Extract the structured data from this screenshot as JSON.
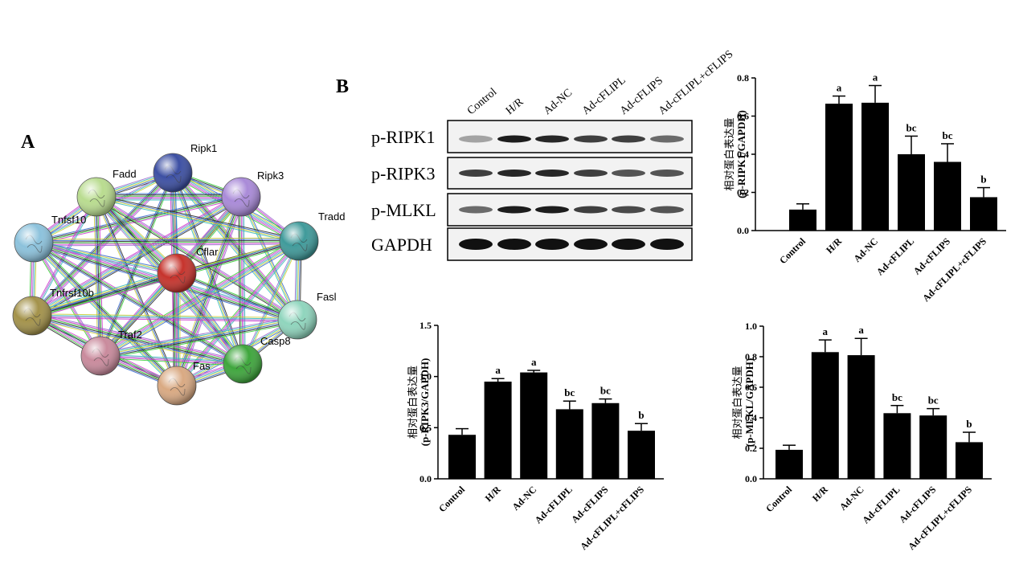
{
  "panel_a": {
    "label": "A",
    "nodes": [
      "Ripk1",
      "Ripk3",
      "Fadd",
      "Tradd",
      "Tnfsf10",
      "Cflar",
      "Tnfrsf10b",
      "Fasl",
      "Traf2",
      "Casp8",
      "Fas"
    ]
  },
  "panel_b": {
    "label": "B",
    "blot": {
      "lanes": [
        "Control",
        "H/R",
        "Ad-NC",
        "Ad-cFLIPL",
        "Ad-cFLIPS",
        "Ad-cFLIPL+cFLIPS"
      ],
      "rows": [
        "p-RIPK1",
        "p-RIPK3",
        "p-MLKL",
        "GAPDH"
      ]
    }
  },
  "chart_data": [
    {
      "type": "bar",
      "ylabel": [
        "相对蛋白表达量",
        "(p-RIPK1/GAPDH)"
      ],
      "categories": [
        "Control",
        "H/R",
        "Ad-NC",
        "Ad-cFLIPL",
        "Ad-cFLIPS",
        "Ad-cFLIPL+cFLIPS"
      ],
      "values": [
        0.11,
        0.665,
        0.67,
        0.4,
        0.36,
        0.175
      ],
      "errors": [
        0.03,
        0.04,
        0.09,
        0.095,
        0.095,
        0.05
      ],
      "letters": [
        null,
        "a",
        "a",
        "bc",
        "bc",
        "b"
      ],
      "color": "#000000",
      "ylim": [
        0,
        0.8
      ],
      "yticks": [
        {
          "value": 0,
          "label": "0.0"
        },
        0.2,
        0.4,
        0.6,
        0.8
      ]
    },
    {
      "type": "bar",
      "ylabel": [
        "相对蛋白表达量",
        "(p-RIPK3/GAPDH)"
      ],
      "categories": [
        "Control",
        "H/R",
        "Ad-NC",
        "Ad-cFLIPL",
        "Ad-cFLIPS",
        "Ad-cFLIPL+cFLIPS"
      ],
      "values": [
        0.43,
        0.95,
        1.04,
        0.68,
        0.74,
        0.47
      ],
      "errors": [
        0.06,
        0.03,
        0.02,
        0.08,
        0.04,
        0.07
      ],
      "letters": [
        null,
        "a",
        "a",
        "bc",
        "bc",
        "b"
      ],
      "color": "#000000",
      "ylim": [
        0,
        1.5
      ],
      "yticks": [
        {
          "value": 0,
          "label": "0.0"
        },
        0.5,
        {
          "value": 1,
          "label": "1.0"
        },
        1.5
      ]
    },
    {
      "type": "bar",
      "ylabel": [
        "相对蛋白表达量",
        "(p-MLKL/GAPDH)"
      ],
      "categories": [
        "Control",
        "H/R",
        "Ad-NC",
        "Ad-cFLIPL",
        "Ad-cFLIPS",
        "Ad-cFLIPL+cFLIPS"
      ],
      "values": [
        0.19,
        0.83,
        0.81,
        0.43,
        0.415,
        0.24
      ],
      "errors": [
        0.03,
        0.08,
        0.11,
        0.05,
        0.045,
        0.065
      ],
      "letters": [
        null,
        "a",
        "a",
        "bc",
        "bc",
        "b"
      ],
      "color": "#000000",
      "ylim": [
        0,
        1
      ],
      "yticks": [
        {
          "value": 0,
          "label": "0.0"
        },
        0.2,
        0.4,
        0.6,
        0.8,
        {
          "value": 1,
          "label": "1.0"
        }
      ]
    }
  ]
}
